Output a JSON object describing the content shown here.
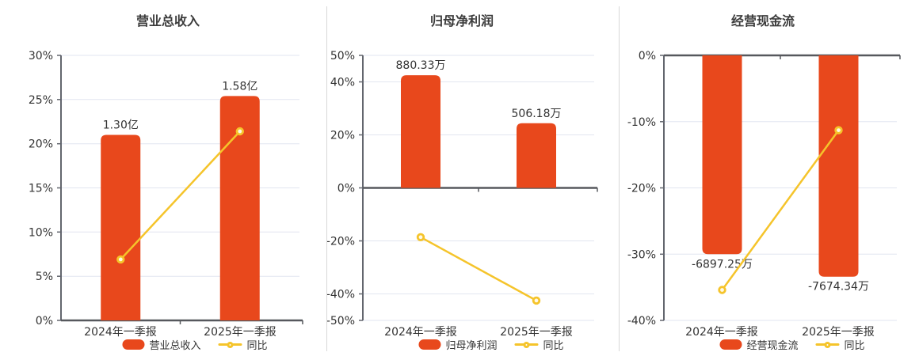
{
  "colors": {
    "bar": "#E8481C",
    "line": "#F5C42B",
    "marker_fill": "#FFF8E6",
    "grid": "#E2E6F0",
    "axis_zero_line": "#56585D",
    "axis_secondary": "#63666E",
    "text": "#333333",
    "title": "#3C3C3C",
    "divider": "#D8D8D8",
    "background": "#FFFFFF"
  },
  "chart_data": [
    {
      "type": "bar",
      "title": "营业总收入",
      "categories": [
        "2024年一季报",
        "2025年一季报"
      ],
      "bar_series": {
        "name": "营业总收入",
        "value_labels": [
          "1.30亿",
          "1.58亿"
        ],
        "display_pct": [
          21.0,
          25.4
        ]
      },
      "line_series": {
        "name": "同比",
        "values_pct": [
          6.9,
          21.4
        ]
      },
      "y_axis": {
        "unit": "%",
        "min": 0,
        "max": 30,
        "tick_values": [
          30,
          25,
          20,
          15,
          10,
          5,
          0
        ],
        "tick_labels": [
          "30%",
          "25%",
          "20%",
          "15%",
          "10%",
          "5%",
          "0%"
        ]
      },
      "legend": [
        "营业总收入",
        "同比"
      ],
      "legend_position": "bottom",
      "grid": true
    },
    {
      "type": "bar",
      "title": "归母净利润",
      "categories": [
        "2024年一季报",
        "2025年一季报"
      ],
      "bar_series": {
        "name": "归母净利润",
        "value_labels": [
          "880.33万",
          "506.18万"
        ],
        "display_pct": [
          42.5,
          24.4
        ]
      },
      "line_series": {
        "name": "同比",
        "values_pct": [
          -18.6,
          -42.5
        ]
      },
      "y_axis": {
        "unit": "%",
        "min": -50,
        "max": 50,
        "tick_values": [
          50,
          40,
          20,
          0,
          -20,
          -40,
          -50
        ],
        "tick_labels": [
          "50%",
          "40%",
          "20%",
          "0%",
          "-20%",
          "-40%",
          "-50%"
        ]
      },
      "legend": [
        "归母净利润",
        "同比"
      ],
      "legend_position": "bottom",
      "grid": true
    },
    {
      "type": "bar",
      "title": "经营现金流",
      "categories": [
        "2024年一季报",
        "2025年一季报"
      ],
      "bar_series": {
        "name": "经营现金流",
        "value_labels": [
          "-6897.25万",
          "-7674.34万"
        ],
        "display_pct": [
          -30.0,
          -33.4
        ]
      },
      "line_series": {
        "name": "同比",
        "values_pct": [
          -35.4,
          -11.3
        ]
      },
      "y_axis": {
        "unit": "%",
        "min": -40,
        "max": 0,
        "tick_values": [
          0,
          -10,
          -20,
          -30,
          -40
        ],
        "tick_labels": [
          "0%",
          "-10%",
          "-20%",
          "-30%",
          "-40%"
        ]
      },
      "legend": [
        "经营现金流",
        "同比"
      ],
      "legend_position": "bottom",
      "grid": true
    }
  ]
}
